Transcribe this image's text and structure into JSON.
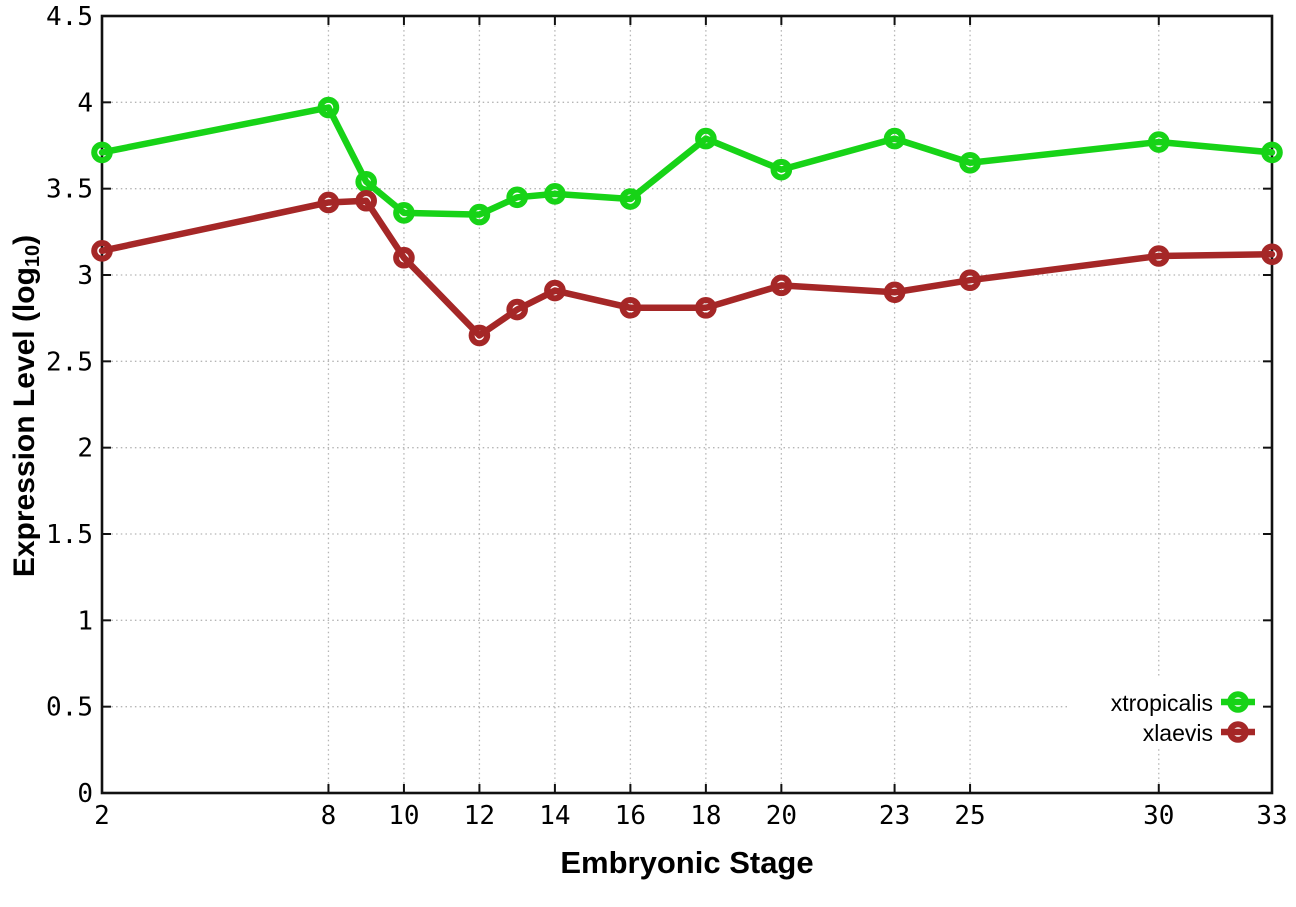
{
  "page": {
    "background_color": "#ffffff"
  },
  "chart_data": {
    "type": "line",
    "title": "",
    "xlabel": "Embryonic Stage",
    "ylabel": "Expression Level (log10)",
    "ylabel_parts": {
      "prefix": "Expression Level (log",
      "subscript": "10",
      "suffix": ")"
    },
    "xlim": [
      2,
      33
    ],
    "ylim": [
      0,
      4.5
    ],
    "x_ticks": [
      2,
      8,
      10,
      12,
      14,
      16,
      18,
      20,
      23,
      25,
      30,
      33
    ],
    "y_ticks": [
      0,
      0.5,
      1,
      1.5,
      2,
      2.5,
      3,
      3.5,
      4,
      4.5
    ],
    "grid": true,
    "grid_style": "dotted",
    "grid_color": "#b5b5b5",
    "axis_color": "#111111",
    "legend_position": "inside-bottom-right",
    "marker": "open-circle",
    "x": [
      2,
      8,
      9,
      10,
      12,
      13,
      14,
      16,
      18,
      20,
      23,
      25,
      30,
      33
    ],
    "series": [
      {
        "name": "xtropicalis",
        "color": "#17d317",
        "values": [
          3.71,
          3.97,
          3.54,
          3.36,
          3.35,
          3.45,
          3.47,
          3.44,
          3.79,
          3.61,
          3.79,
          3.65,
          3.77,
          3.71
        ]
      },
      {
        "name": "xlaevis",
        "color": "#a52727",
        "values": [
          3.14,
          3.42,
          3.43,
          3.1,
          2.65,
          2.8,
          2.91,
          2.81,
          2.81,
          2.94,
          2.9,
          2.97,
          3.11,
          3.12
        ]
      }
    ]
  }
}
